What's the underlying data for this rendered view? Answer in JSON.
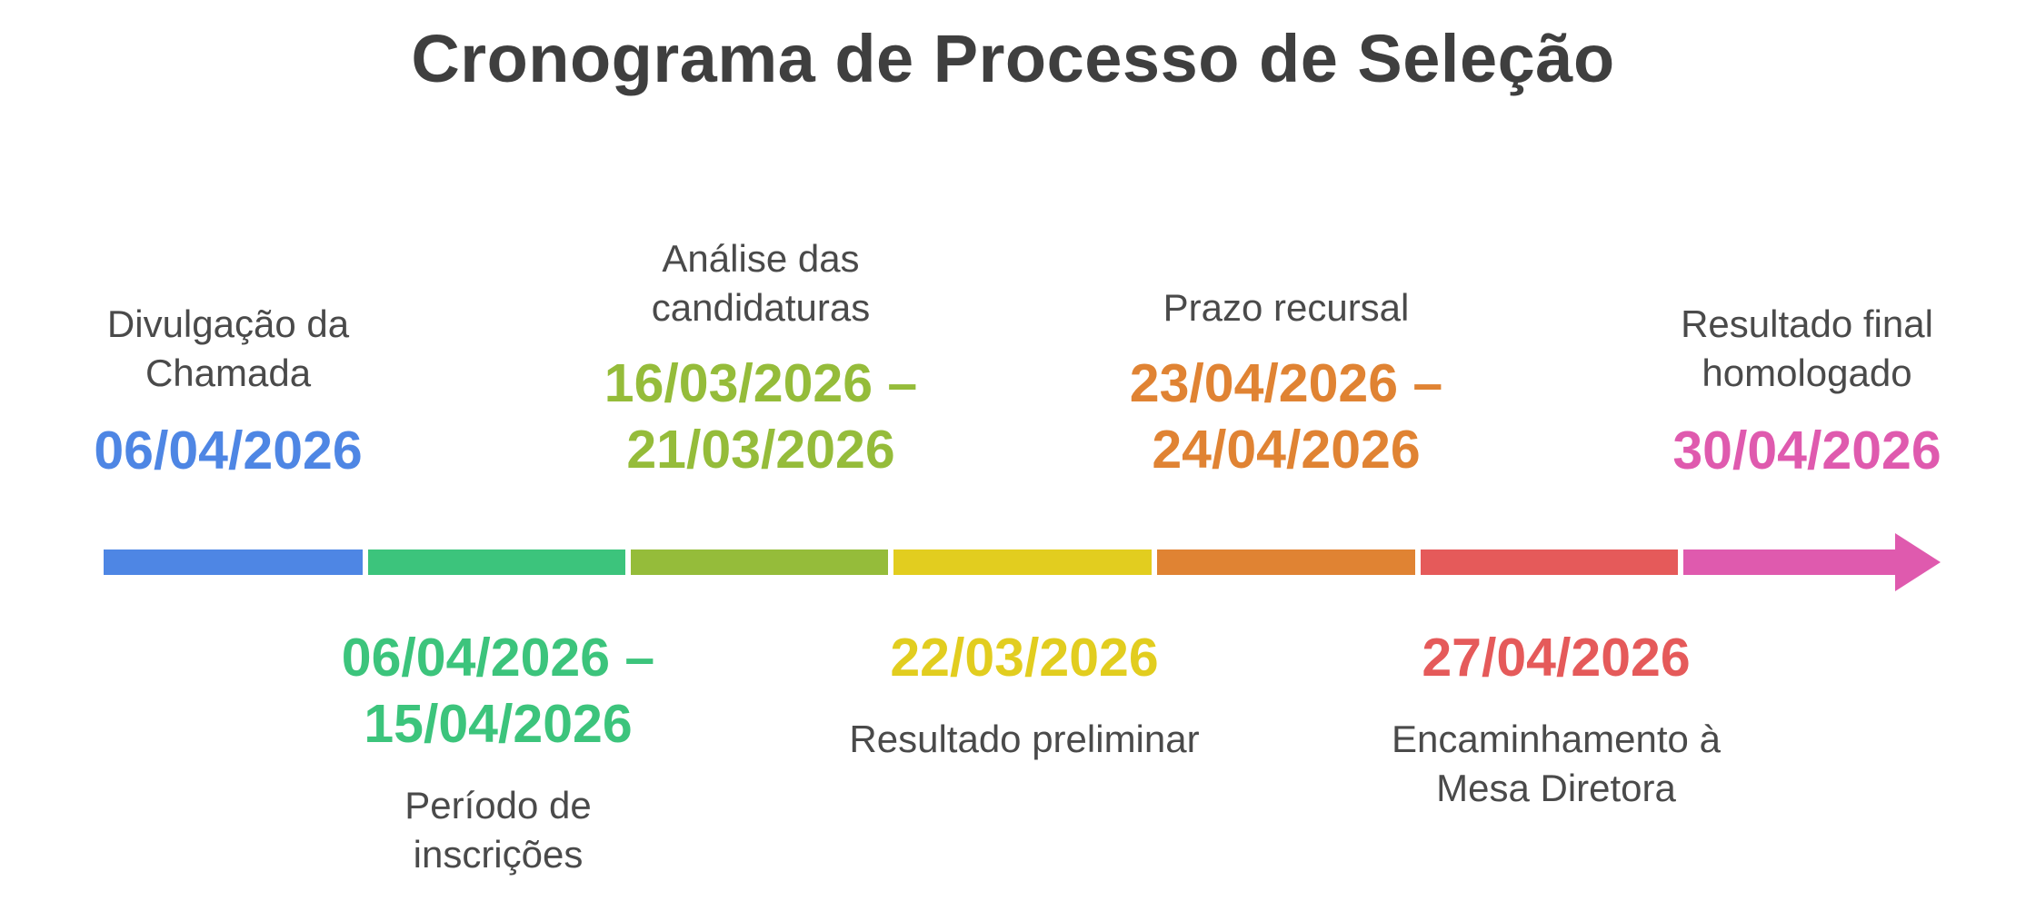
{
  "title": "Cronograma de Processo de Seleção",
  "events": [
    {
      "label": "Divulgação da\nChamada",
      "date": "06/04/2026",
      "color": "#4e86e4"
    },
    {
      "label": "Período de\ninscrições",
      "date": "06/04/2026 –\n15/04/2026",
      "color": "#3cc47c"
    },
    {
      "label": "Análise das\ncandidaturas",
      "date": "16/03/2026 –\n21/03/2026",
      "color": "#95bc3a"
    },
    {
      "label": "Resultado preliminar",
      "date": "22/03/2026",
      "color": "#e2cd1f"
    },
    {
      "label": "Prazo recursal",
      "date": "23/04/2026 –\n24/04/2026",
      "color": "#e08333"
    },
    {
      "label": "Encaminhamento à\nMesa Diretora",
      "date": "27/04/2026",
      "color": "#e55a5a"
    },
    {
      "label": "Resultado final\nhomologado",
      "date": "30/04/2026",
      "color": "#df5aae"
    }
  ]
}
